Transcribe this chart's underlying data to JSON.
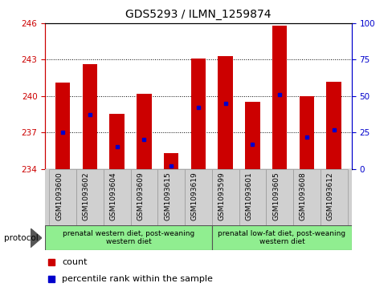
{
  "title": "GDS5293 / ILMN_1259874",
  "samples": [
    "GSM1093600",
    "GSM1093602",
    "GSM1093604",
    "GSM1093609",
    "GSM1093615",
    "GSM1093619",
    "GSM1093599",
    "GSM1093601",
    "GSM1093605",
    "GSM1093608",
    "GSM1093612"
  ],
  "counts": [
    241.1,
    242.6,
    238.5,
    240.2,
    235.3,
    243.1,
    243.3,
    239.5,
    245.8,
    240.0,
    241.2
  ],
  "percentiles": [
    25,
    37,
    15,
    20,
    2,
    42,
    45,
    17,
    51,
    22,
    27
  ],
  "y_min": 234,
  "y_max": 246,
  "y_ticks": [
    234,
    237,
    240,
    243,
    246
  ],
  "right_y_ticks": [
    0,
    25,
    50,
    75,
    100
  ],
  "bar_color": "#cc0000",
  "percentile_color": "#0000cc",
  "group1_label": "prenatal western diet, post-weaning\nwestern diet",
  "group2_label": "prenatal low-fat diet, post-weaning\nwestern diet",
  "group1_samples": 6,
  "group2_samples": 5,
  "legend_count_label": "count",
  "legend_percentile_label": "percentile rank within the sample",
  "protocol_label": "protocol",
  "bar_width": 0.55,
  "plot_bg_color": "#ffffff"
}
